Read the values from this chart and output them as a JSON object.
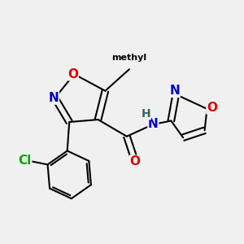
{
  "bg_color": "#f0f0f0",
  "bond_color": "#000000",
  "bond_width": 1.5,
  "atom_colors": {
    "N": "#0000cc",
    "O": "#dd0000",
    "Cl": "#00aa00",
    "C": "#000000",
    "H": "#336666"
  },
  "font_size_atom": 11,
  "font_size_methyl": 10
}
